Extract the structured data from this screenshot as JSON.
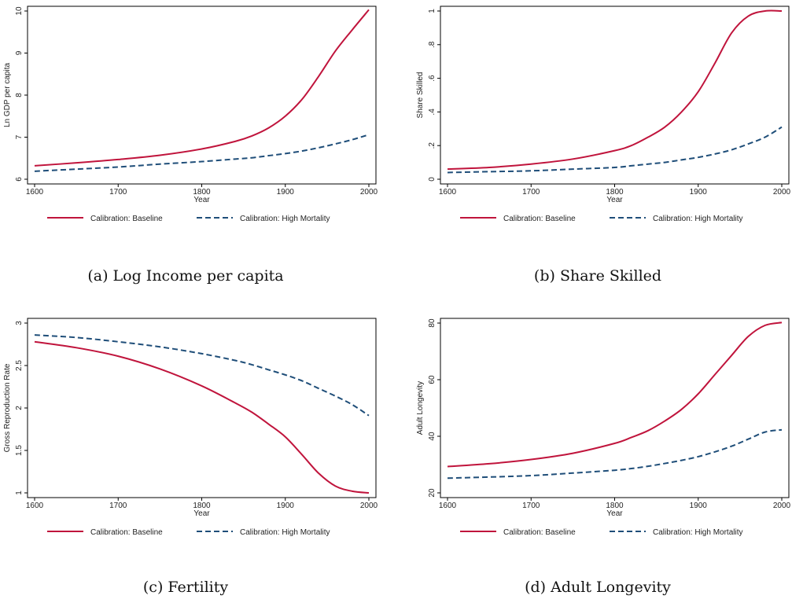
{
  "legend": {
    "baseline": "Calibration: Baseline",
    "high_mortality": "Calibration: High Mortality"
  },
  "colors": {
    "baseline": "#c0143c",
    "high_mortality": "#1f4e79",
    "axis": "#000000"
  },
  "chart_data": [
    {
      "type": "line",
      "caption": "(a) Log Income per capita",
      "xlabel": "Year",
      "ylabel": "Ln GDP per capita",
      "xlim": [
        1600,
        2000
      ],
      "ylim": [
        6,
        10
      ],
      "xticks": [
        1600,
        1700,
        1800,
        1900,
        2000
      ],
      "yticks": [
        6,
        7,
        8,
        9,
        10
      ],
      "ytick_labels": [
        "6",
        "7",
        "8",
        "9",
        "10"
      ],
      "grid": false,
      "legend_position": "bottom",
      "x": [
        1600,
        1650,
        1700,
        1750,
        1800,
        1840,
        1860,
        1880,
        1900,
        1920,
        1940,
        1960,
        1980,
        2000
      ],
      "series": [
        {
          "name": "Calibration: Baseline",
          "style": "solid",
          "values": [
            6.32,
            6.39,
            6.47,
            6.57,
            6.72,
            6.9,
            7.03,
            7.22,
            7.5,
            7.9,
            8.45,
            9.05,
            9.55,
            10.03
          ]
        },
        {
          "name": "Calibration: High Mortality",
          "style": "dashed",
          "values": [
            6.19,
            6.24,
            6.29,
            6.36,
            6.42,
            6.48,
            6.51,
            6.56,
            6.61,
            6.67,
            6.75,
            6.84,
            6.94,
            7.06
          ]
        }
      ]
    },
    {
      "type": "line",
      "caption": "(b) Share Skilled",
      "xlabel": "Year",
      "ylabel": "Share Skilled",
      "xlim": [
        1600,
        2000
      ],
      "ylim": [
        0,
        1
      ],
      "xticks": [
        1600,
        1700,
        1800,
        1900,
        2000
      ],
      "yticks": [
        0,
        0.2,
        0.4,
        0.6,
        0.8,
        1
      ],
      "ytick_labels": [
        "0",
        ".2",
        ".4",
        ".6",
        ".8",
        "1"
      ],
      "grid": false,
      "legend_position": "bottom",
      "x": [
        1600,
        1650,
        1700,
        1750,
        1800,
        1820,
        1840,
        1860,
        1880,
        1900,
        1920,
        1940,
        1960,
        1980,
        2000
      ],
      "series": [
        {
          "name": "Calibration: Baseline",
          "style": "solid",
          "values": [
            0.06,
            0.07,
            0.09,
            0.12,
            0.17,
            0.2,
            0.25,
            0.31,
            0.4,
            0.52,
            0.69,
            0.87,
            0.97,
            1.0,
            1.0
          ]
        },
        {
          "name": "Calibration: High Mortality",
          "style": "dashed",
          "values": [
            0.04,
            0.045,
            0.05,
            0.06,
            0.07,
            0.08,
            0.09,
            0.1,
            0.115,
            0.13,
            0.15,
            0.175,
            0.21,
            0.25,
            0.31
          ]
        }
      ]
    },
    {
      "type": "line",
      "caption": "(c) Fertility",
      "xlabel": "Year",
      "ylabel": "Gross Reproduction Rate",
      "xlim": [
        1600,
        2000
      ],
      "ylim": [
        1,
        3
      ],
      "xticks": [
        1600,
        1700,
        1800,
        1900,
        2000
      ],
      "yticks": [
        1,
        1.5,
        2,
        2.5,
        3
      ],
      "ytick_labels": [
        "1",
        "1.5",
        "2",
        "2.5",
        "3"
      ],
      "grid": false,
      "legend_position": "bottom",
      "x": [
        1600,
        1650,
        1700,
        1750,
        1800,
        1840,
        1860,
        1880,
        1900,
        1920,
        1940,
        1960,
        1980,
        2000
      ],
      "series": [
        {
          "name": "Calibration: Baseline",
          "style": "solid",
          "values": [
            2.78,
            2.71,
            2.61,
            2.46,
            2.26,
            2.06,
            1.95,
            1.81,
            1.66,
            1.45,
            1.23,
            1.08,
            1.02,
            1.0
          ]
        },
        {
          "name": "Calibration: High Mortality",
          "style": "dashed",
          "values": [
            2.86,
            2.83,
            2.78,
            2.72,
            2.64,
            2.56,
            2.51,
            2.45,
            2.39,
            2.32,
            2.23,
            2.14,
            2.04,
            1.91
          ]
        }
      ]
    },
    {
      "type": "line",
      "caption": "(d) Adult Longevity",
      "xlabel": "Year",
      "ylabel": "Adult Longevity",
      "xlim": [
        1600,
        2000
      ],
      "ylim": [
        20,
        80
      ],
      "xticks": [
        1600,
        1700,
        1800,
        1900,
        2000
      ],
      "yticks": [
        20,
        40,
        60,
        80
      ],
      "ytick_labels": [
        "20",
        "40",
        "60",
        "80"
      ],
      "grid": false,
      "legend_position": "bottom",
      "x": [
        1600,
        1650,
        1700,
        1750,
        1800,
        1820,
        1840,
        1860,
        1880,
        1900,
        1920,
        1940,
        1960,
        1980,
        2000
      ],
      "series": [
        {
          "name": "Calibration: Baseline",
          "style": "solid",
          "values": [
            29.3,
            30.3,
            31.8,
            34.0,
            37.5,
            39.6,
            42.0,
            45.4,
            49.5,
            55.0,
            61.8,
            68.6,
            75.3,
            79.2,
            80.2
          ]
        },
        {
          "name": "Calibration: High Mortality",
          "style": "dashed",
          "values": [
            25.2,
            25.6,
            26.1,
            27.0,
            28.0,
            28.6,
            29.4,
            30.4,
            31.5,
            32.8,
            34.5,
            36.5,
            39.0,
            41.5,
            42.3
          ]
        }
      ]
    }
  ]
}
